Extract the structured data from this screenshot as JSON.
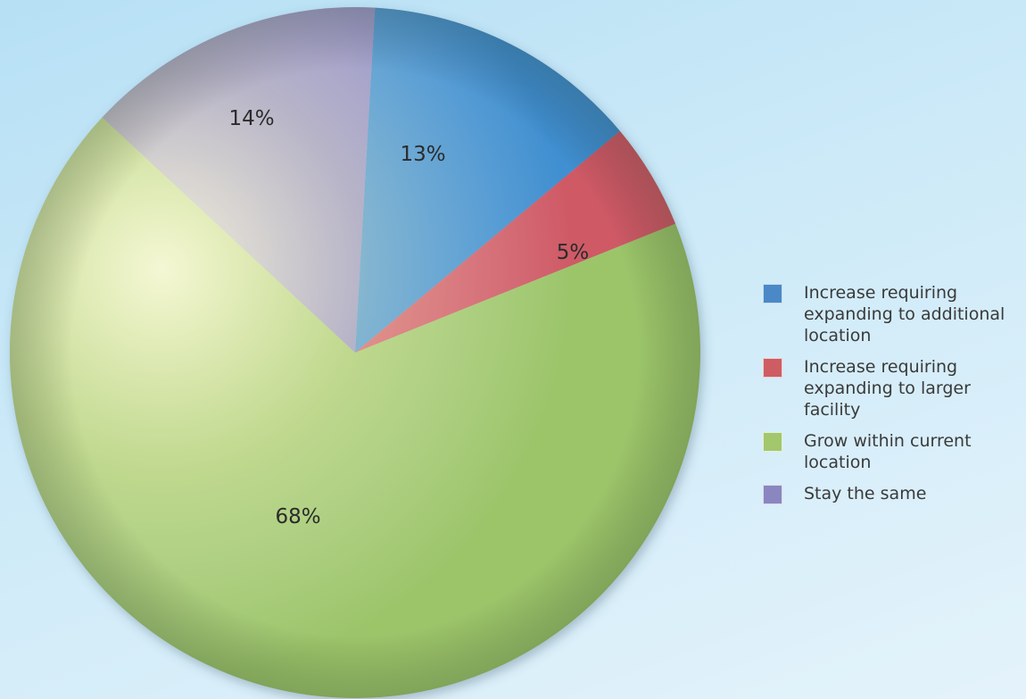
{
  "chart_data": {
    "type": "pie",
    "title": "",
    "slices": [
      {
        "name": "Increase requiring expanding to additional location",
        "value": 13,
        "label": "13%",
        "color": "#3f8fd0"
      },
      {
        "name": "Increase requiring expanding to larger facility",
        "value": 5,
        "label": "5%",
        "color": "#cf5a66"
      },
      {
        "name": "Grow within current location",
        "value": 68,
        "label": "68%",
        "color": "#9cc56a"
      },
      {
        "name": "Stay the same",
        "value": 14,
        "label": "14%",
        "color": "#8f8cc4"
      }
    ],
    "legend": {
      "position": "right",
      "items": [
        {
          "label": "Increase requiring expanding to additional location",
          "color": "#4a88c7"
        },
        {
          "label": "Increase requiring expanding to larger facility",
          "color": "#cd5d62"
        },
        {
          "label": "Grow within current location",
          "color": "#a3c76c"
        },
        {
          "label": "Stay the same",
          "color": "#8a86c0"
        }
      ]
    }
  }
}
